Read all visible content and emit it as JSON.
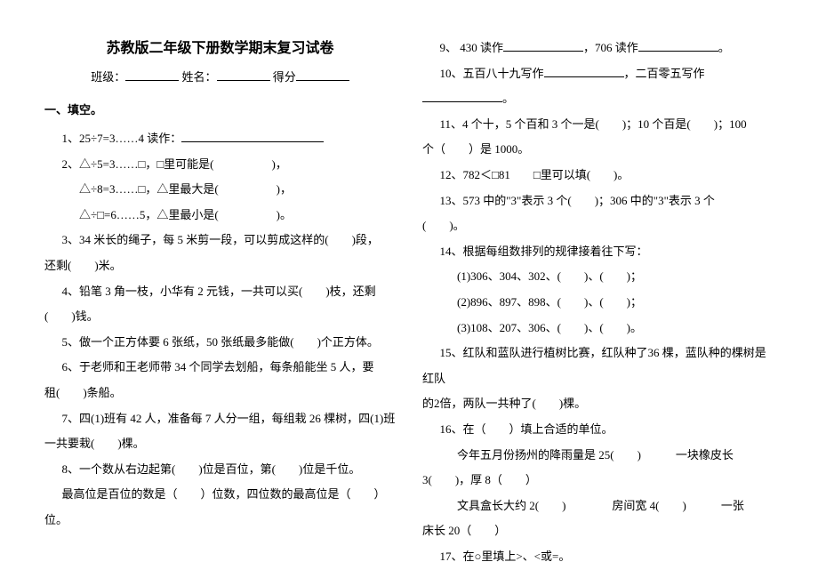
{
  "title": "苏教版二年级下册数学期末复习试卷",
  "header": {
    "class_label": "班级：",
    "name_label": "姓名：",
    "score_label": "得分"
  },
  "section1_title": "一、填空。",
  "left": {
    "q1": "1、25÷7=3……4 读作：",
    "q2a": "2、△÷5=3……□，□里可能是(　　　　　)，",
    "q2b": "△÷8=3……□，△里最大是(　　　　　)，",
    "q2c": "△÷□=6……5，△里最小是(　　　　　)。",
    "q3": "3、34 米长的绳子，每 5 米剪一段，可以剪成这样的(　　)段，",
    "q3b": "还剩(　　)米。",
    "q4": "4、铅笔 3 角一枝，小华有 2 元钱，一共可以买(　　)枝，还剩",
    "q4b": "(　　)钱。",
    "q5": "5、做一个正方体要 6 张纸，50 张纸最多能做(　　)个正方体。",
    "q6": "6、于老师和王老师带 34 个同学去划船，每条船能坐 5 人，要",
    "q6b": "租(　　)条船。",
    "q7": "7、四(1)班有 42 人，准备每 7 人分一组，每组栽 26 棵树，四(1)班",
    "q7b": "一共要栽(　　)棵。",
    "q8": "8、一个数从右边起第(　　)位是百位，第(　　)位是千位。",
    "q8b": "最高位是百位的数是（　　）位数，四位数的最高位是（　　）",
    "q8c": "位。"
  },
  "right": {
    "q9": "9、 430 读作",
    "q9b": "，706 读作",
    "q9c": "。",
    "q10": "10、五百八十九写作",
    "q10b": "，二百零五写作",
    "q10c": "。",
    "q11": "11、4 个十，5 个百和 3 个一是(　　)；10 个百是(　　)；100",
    "q11b": "个（　　）是 1000。",
    "q12": "12、782＜□81　　□里可以填(　　)。",
    "q13": "13、573 中的\"3\"表示 3 个(　　)；306 中的\"3\"表示 3 个",
    "q13b": "(　　)。",
    "q14": "14、根据每组数排列的规律接着往下写：",
    "q14a": "(1)306、304、302、(　　)、(　　)；",
    "q14b": "(2)896、897、898、(　　)、(　　)；",
    "q14c": "(3)108、207、306、(　　)、(　　)。",
    "q15": "15、红队和蓝队进行植树比赛，红队种了36 棵，蓝队种的棵树是红队",
    "q15b": "的2倍，两队一共种了(　　)棵。",
    "q16": "16、在（　　）填上合适的单位。",
    "q16a": "今年五月份扬州的降雨量是 25(　　)　　　一块橡皮长",
    "q16a2": "3(　　)，厚 8（　　）",
    "q16b": "文具盒长大约 2(　　)　　　　房间宽 4(　　)　　　一张",
    "q16b2": "床长 20（　　）",
    "q17": "17、在○里填上>、<或=。"
  }
}
